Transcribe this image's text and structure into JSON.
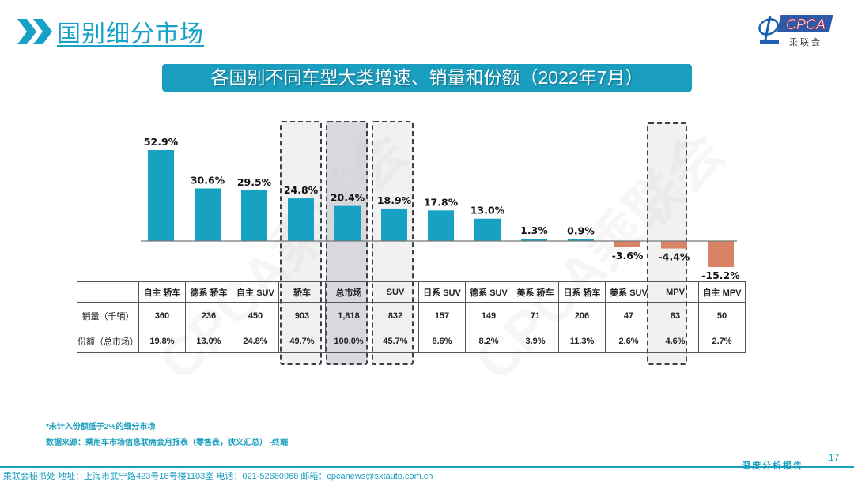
{
  "header": {
    "title": "国别细分市场",
    "logo_text": "CPCA",
    "logo_subtext": "乘联会"
  },
  "banner": {
    "title": "各国别不同车型大类增速、销量和份额（2022年7月）"
  },
  "colors": {
    "positive": "#17a1c2",
    "negative": "#d98366",
    "accent": "#1a9ebf",
    "highlight_light": "#f1f1f2",
    "highlight_dark": "#d9d8de"
  },
  "chart_data": {
    "type": "bar",
    "title": "各国别不同车型大类增速、销量和份额（2022年7月）",
    "categories": [
      "自主 轿车",
      "德系 轿车",
      "自主 SUV",
      "轿车",
      "总市场",
      "SUV",
      "日系 SUV",
      "德系 SUV",
      "美系 轿车",
      "日系 轿车",
      "美系 SUV",
      "MPV",
      "自主 MPV"
    ],
    "values": [
      52.9,
      30.6,
      29.5,
      24.8,
      20.4,
      18.9,
      17.8,
      13.0,
      1.3,
      0.9,
      -3.6,
      -4.4,
      -15.2
    ],
    "labels": [
      "52.9%",
      "30.6%",
      "29.5%",
      "24.8%",
      "20.4%",
      "18.9%",
      "17.8%",
      "13.0%",
      "1.3%",
      "0.9%",
      "-3.6%",
      "-4.4%",
      "-15.2%"
    ],
    "unit": "%",
    "ylim": [
      -16,
      55
    ],
    "grid": false,
    "highlighted_categories": [
      "轿车",
      "总市场",
      "SUV",
      "MPV"
    ]
  },
  "table": {
    "row_headers": [
      "",
      "销量（千辆）",
      "份额（总市场）"
    ],
    "columns": [
      "自主 轿车",
      "德系 轿车",
      "自主 SUV",
      "轿车",
      "总市场",
      "SUV",
      "日系 SUV",
      "德系 SUV",
      "美系 轿车",
      "日系 轿车",
      "美系 SUV",
      "MPV",
      "自主 MPV"
    ],
    "sales": [
      "360",
      "236",
      "450",
      "903",
      "1,818",
      "832",
      "157",
      "149",
      "71",
      "206",
      "47",
      "83",
      "50"
    ],
    "share": [
      "19.8%",
      "13.0%",
      "24.8%",
      "49.7%",
      "100.0%",
      "45.7%",
      "8.6%",
      "8.2%",
      "3.9%",
      "11.3%",
      "2.6%",
      "4.6%",
      "2.7%"
    ]
  },
  "notes": {
    "footnote": "*未计入份额低于2%的细分市场",
    "source": "数据来源：乘用车市场信息联席会月报表（零售表，狭义汇总）  -终端"
  },
  "footer": {
    "contact": "乘联会秘书处   地址：上海市武宁路423号18号楼1103室   电话：021-52680968    邮箱：cpcanews@sxtauto.com.cn",
    "tag": "深度分析报告",
    "page_number": "17"
  },
  "watermark": "CPCA乘联会"
}
